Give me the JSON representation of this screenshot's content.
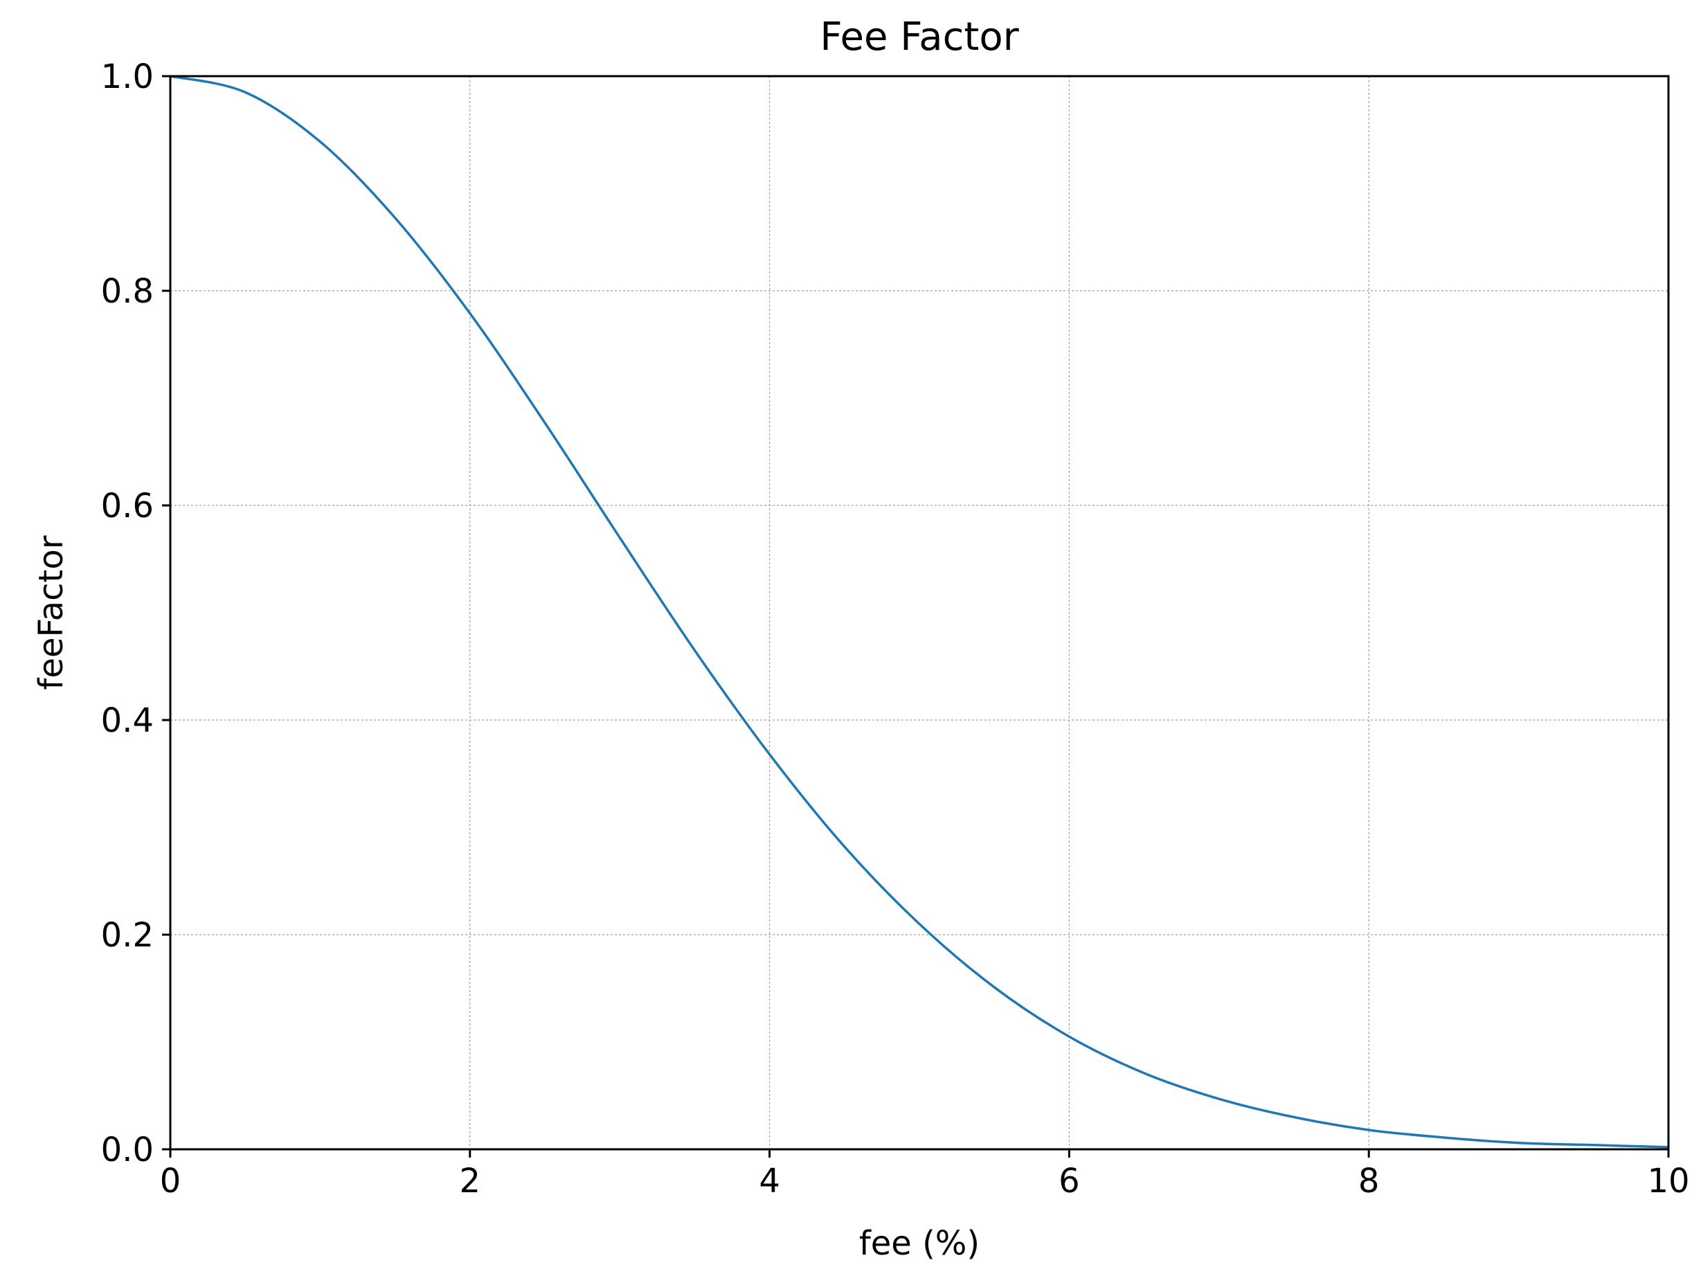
{
  "chart_data": {
    "type": "line",
    "title": "Fee Factor",
    "xlabel": "fee (%)",
    "ylabel": "feeFactor",
    "xlim": [
      0,
      10
    ],
    "ylim": [
      0.0,
      1.0
    ],
    "grid": true,
    "x_ticks": [
      "0",
      "2",
      "4",
      "6",
      "8",
      "10"
    ],
    "y_ticks": [
      "0.0",
      "0.2",
      "0.4",
      "0.6",
      "0.8",
      "1.0"
    ],
    "series": [
      {
        "color": "#1f77b4",
        "x": [
          0,
          0.5,
          1,
          1.5,
          2,
          2.5,
          3,
          3.5,
          4,
          4.5,
          5,
          5.5,
          6,
          6.5,
          7,
          7.5,
          8,
          8.5,
          9,
          9.5,
          10
        ],
        "y": [
          1.0,
          0.985,
          0.939,
          0.868,
          0.779,
          0.677,
          0.57,
          0.465,
          0.368,
          0.282,
          0.21,
          0.151,
          0.105,
          0.071,
          0.047,
          0.03,
          0.018,
          0.011,
          0.006,
          0.004,
          0.002
        ]
      }
    ]
  }
}
